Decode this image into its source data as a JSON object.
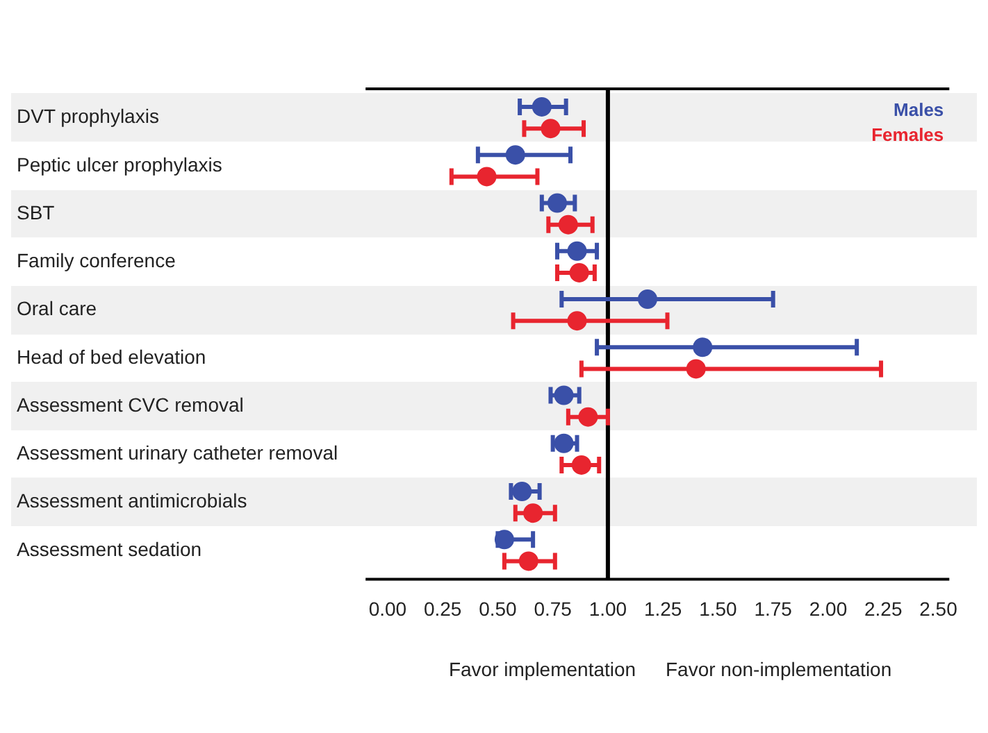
{
  "chart_data": {
    "type": "scatter",
    "orientation": "horizontal",
    "categories": [
      "DVT prophylaxis",
      "Peptic ulcer prophylaxis",
      "SBT",
      "Family conference",
      "Oral care",
      "Head of bed elevation",
      "Assessment CVC removal",
      "Assessment urinary catheter removal",
      "Assessment antimicrobials",
      "Assessment sedation"
    ],
    "series": [
      {
        "name": "Males",
        "color": "#3a50a8",
        "values": [
          0.7,
          0.58,
          0.77,
          0.86,
          1.18,
          1.43,
          0.8,
          0.8,
          0.61,
          0.53
        ],
        "errors": [
          [
            0.6,
            0.81
          ],
          [
            0.41,
            0.83
          ],
          [
            0.7,
            0.85
          ],
          [
            0.77,
            0.95
          ],
          [
            0.79,
            1.75
          ],
          [
            0.95,
            2.13
          ],
          [
            0.74,
            0.87
          ],
          [
            0.75,
            0.86
          ],
          [
            0.56,
            0.69
          ],
          [
            0.5,
            0.66
          ]
        ]
      },
      {
        "name": "Females",
        "color": "#e8252f",
        "values": [
          0.74,
          0.45,
          0.82,
          0.87,
          0.86,
          1.4,
          0.91,
          0.88,
          0.66,
          0.64
        ],
        "errors": [
          [
            0.62,
            0.89
          ],
          [
            0.29,
            0.68
          ],
          [
            0.73,
            0.93
          ],
          [
            0.77,
            0.94
          ],
          [
            0.57,
            1.27
          ],
          [
            0.88,
            2.24
          ],
          [
            0.82,
            1.0
          ],
          [
            0.79,
            0.96
          ],
          [
            0.58,
            0.76
          ],
          [
            0.53,
            0.76
          ]
        ]
      }
    ],
    "xlim": [
      -0.1,
      2.55
    ],
    "xticks": [
      {
        "value": 0,
        "label": "0.00"
      },
      {
        "value": 0.25,
        "label": "0.25"
      },
      {
        "value": 0.5,
        "label": "0.50"
      },
      {
        "value": 0.75,
        "label": "0.75"
      },
      {
        "value": 1,
        "label": "1.00"
      },
      {
        "value": 1.25,
        "label": "1.25"
      },
      {
        "value": 1.5,
        "label": "1.50"
      },
      {
        "value": 1.75,
        "label": "1.75"
      },
      {
        "value": 2,
        "label": "2.00"
      },
      {
        "value": 2.25,
        "label": "2.25"
      },
      {
        "value": 2.5,
        "label": "2.50"
      }
    ],
    "ref_lines": [
      {
        "axis": "x",
        "value": 1,
        "color": "#000000"
      }
    ],
    "annotations": [
      "Favor implementation",
      "Favor non-implementation"
    ],
    "legend": "top right",
    "grid": false,
    "marker": "circle"
  }
}
